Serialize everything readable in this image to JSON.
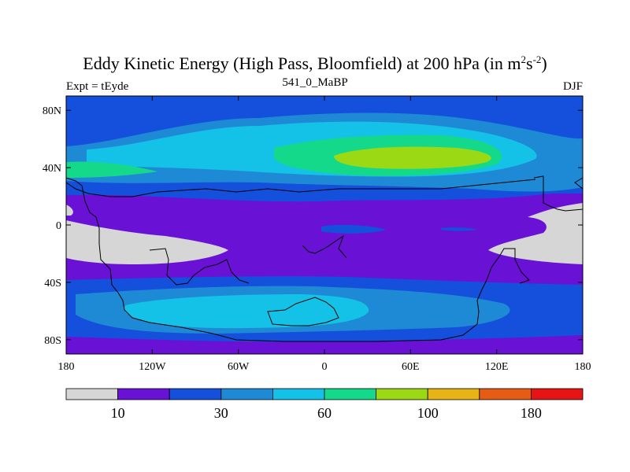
{
  "title": {
    "prefix": "Eddy Kinetic Energy (High Pass, Bloomfield) at 200 hPa (in m",
    "exp1": "2",
    "mid": "s",
    "exp2": "-2",
    "suffix": ")"
  },
  "left_label": "Expt = tEyde",
  "center_label": "541_0_MaBP",
  "right_label": "DJF",
  "lat_ticks": [
    {
      "value": 80,
      "label": "80N"
    },
    {
      "value": 40,
      "label": "40N"
    },
    {
      "value": 0,
      "label": "0"
    },
    {
      "value": -40,
      "label": "40S"
    },
    {
      "value": -80,
      "label": "80S"
    }
  ],
  "lon_ticks": [
    {
      "value": -180,
      "label": "180"
    },
    {
      "value": -120,
      "label": "120W"
    },
    {
      "value": -60,
      "label": "60W"
    },
    {
      "value": 0,
      "label": "0"
    },
    {
      "value": 60,
      "label": "60E"
    },
    {
      "value": 120,
      "label": "120E"
    },
    {
      "value": 180,
      "label": "180"
    }
  ],
  "colorbar": {
    "colors": [
      "#d6d6d6",
      "#6a11d6",
      "#1450dc",
      "#1e8ad6",
      "#14c2e8",
      "#14d98a",
      "#9ad914",
      "#e6b414",
      "#e65c14",
      "#e61414"
    ],
    "labels": [
      {
        "boundary": 1,
        "text": "10"
      },
      {
        "boundary": 3,
        "text": "30"
      },
      {
        "boundary": 5,
        "text": "60"
      },
      {
        "boundary": 7,
        "text": "100"
      },
      {
        "boundary": 9,
        "text": "180"
      }
    ]
  }
}
